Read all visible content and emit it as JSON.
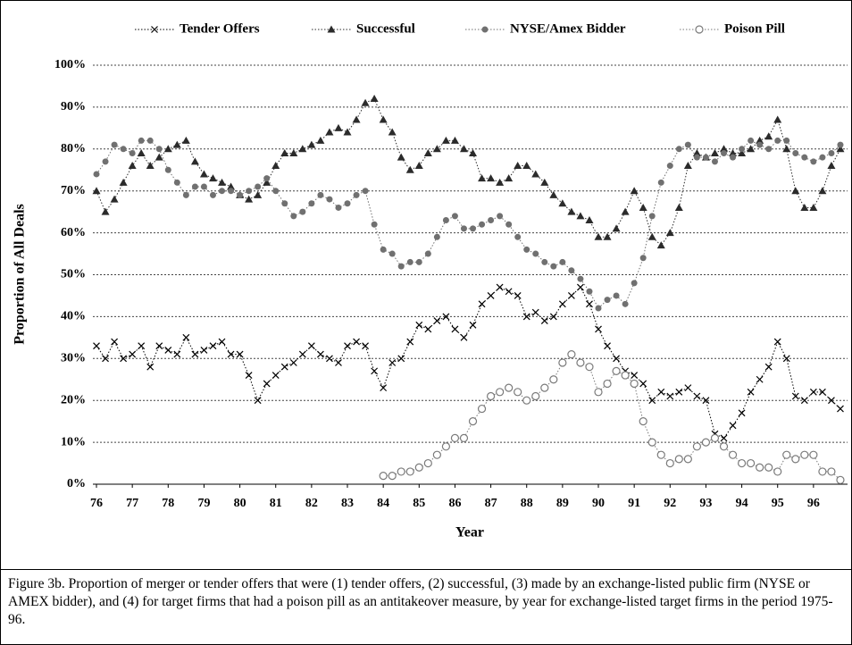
{
  "chart_data": {
    "type": "line",
    "x_label": "Year",
    "y_label": "Proportion of All Deals",
    "caption": "Figure 3b.  Proportion of merger or tender offers that were (1) tender offers, (2) successful, (3) made by an exchange-listed public firm (NYSE or AMEX bidder), and (4) for target firms that had a poison pill as an antitakeover measure, by year for exchange-listed target firms in the period 1975-96.",
    "grid": true,
    "legend": "top",
    "xlim": [
      75.9,
      96.95
    ],
    "xticks": [
      76,
      77,
      78,
      79,
      80,
      81,
      82,
      83,
      84,
      85,
      86,
      87,
      88,
      89,
      90,
      91,
      92,
      93,
      94,
      95,
      96
    ],
    "ylim": [
      0,
      100
    ],
    "yticks": [
      {
        "value": 0,
        "label": "0%"
      },
      {
        "value": 10,
        "label": "10%"
      },
      {
        "value": 20,
        "label": "20%"
      },
      {
        "value": 30,
        "label": "30%"
      },
      {
        "value": 40,
        "label": "40%"
      },
      {
        "value": 50,
        "label": "50%"
      },
      {
        "value": 60,
        "label": "60%"
      },
      {
        "value": 70,
        "label": "70%"
      },
      {
        "value": 80,
        "label": "80%"
      },
      {
        "value": 90,
        "label": "90%"
      },
      {
        "value": 100,
        "label": "100%"
      }
    ],
    "x": [
      76,
      76.25,
      76.5,
      76.75,
      77,
      77.25,
      77.5,
      77.75,
      78,
      78.25,
      78.5,
      78.75,
      79,
      79.25,
      79.5,
      79.75,
      80,
      80.25,
      80.5,
      80.75,
      81,
      81.25,
      81.5,
      81.75,
      82,
      82.25,
      82.5,
      82.75,
      83,
      83.25,
      83.5,
      83.75,
      84,
      84.25,
      84.5,
      84.75,
      85,
      85.25,
      85.5,
      85.75,
      86,
      86.25,
      86.5,
      86.75,
      87,
      87.25,
      87.5,
      87.75,
      88,
      88.25,
      88.5,
      88.75,
      89,
      89.25,
      89.5,
      89.75,
      90,
      90.25,
      90.5,
      90.75,
      91,
      91.25,
      91.5,
      91.75,
      92,
      92.25,
      92.5,
      92.75,
      93,
      93.25,
      93.5,
      93.75,
      94,
      94.25,
      94.5,
      94.75,
      95,
      95.25,
      95.5,
      95.75,
      96,
      96.25,
      96.5,
      96.75
    ],
    "series": [
      {
        "name": "Tender Offers",
        "color": "#000000",
        "marker": "x",
        "values": [
          33,
          30,
          34,
          30,
          31,
          33,
          28,
          33,
          32,
          31,
          35,
          31,
          32,
          33,
          34,
          31,
          31,
          26,
          20,
          24,
          26,
          28,
          29,
          31,
          33,
          31,
          30,
          29,
          33,
          34,
          33,
          27,
          23,
          29,
          30,
          34,
          38,
          37,
          39,
          40,
          37,
          35,
          38,
          43,
          45,
          47,
          46,
          45,
          40,
          41,
          39,
          40,
          43,
          45,
          47,
          43,
          37,
          33,
          30,
          27,
          26,
          24,
          20,
          22,
          21,
          22,
          23,
          21,
          20,
          12,
          11,
          14,
          17,
          22,
          25,
          28,
          34,
          30,
          21,
          20,
          22,
          22,
          20,
          18
        ]
      },
      {
        "name": "Successful",
        "color": "#2b2b2b",
        "marker": "triangle",
        "values": [
          70,
          65,
          68,
          72,
          76,
          79,
          76,
          78,
          80,
          81,
          82,
          77,
          74,
          73,
          72,
          71,
          69,
          68,
          69,
          72,
          76,
          79,
          79,
          80,
          81,
          82,
          84,
          85,
          84,
          87,
          91,
          92,
          87,
          84,
          78,
          75,
          76,
          79,
          80,
          82,
          82,
          80,
          79,
          73,
          73,
          72,
          73,
          76,
          76,
          74,
          72,
          69,
          67,
          65,
          64,
          63,
          59,
          59,
          61,
          65,
          70,
          66,
          59,
          57,
          60,
          66,
          76,
          79,
          78,
          79,
          80,
          79,
          79,
          80,
          82,
          83,
          87,
          80,
          70,
          66,
          66,
          70,
          76,
          80
        ]
      },
      {
        "name": "NYSE/Amex Bidder",
        "color": "#707070",
        "marker": "dot",
        "values": [
          74,
          77,
          81,
          80,
          79,
          82,
          82,
          80,
          75,
          72,
          69,
          71,
          71,
          69,
          70,
          70,
          69,
          70,
          71,
          73,
          70,
          67,
          64,
          65,
          67,
          69,
          68,
          66,
          67,
          69,
          70,
          62,
          56,
          55,
          52,
          53,
          53,
          55,
          59,
          63,
          64,
          61,
          61,
          62,
          63,
          64,
          62,
          59,
          56,
          55,
          53,
          52,
          53,
          51,
          49,
          46,
          42,
          44,
          45,
          43,
          48,
          54,
          64,
          72,
          76,
          80,
          81,
          78,
          78,
          77,
          79,
          78,
          80,
          82,
          81,
          80,
          82,
          82,
          79,
          78,
          77,
          78,
          79,
          81
        ]
      },
      {
        "name": "Poison Pill",
        "color": "#7a7a7a",
        "marker": "circle",
        "values": [
          null,
          null,
          null,
          null,
          null,
          null,
          null,
          null,
          null,
          null,
          null,
          null,
          null,
          null,
          null,
          null,
          null,
          null,
          null,
          null,
          null,
          null,
          null,
          null,
          null,
          null,
          null,
          null,
          null,
          null,
          null,
          null,
          2,
          2,
          3,
          3,
          4,
          5,
          7,
          9,
          11,
          11,
          15,
          18,
          21,
          22,
          23,
          22,
          20,
          21,
          23,
          25,
          29,
          31,
          29,
          28,
          22,
          24,
          27,
          26,
          24,
          15,
          10,
          7,
          5,
          6,
          6,
          9,
          10,
          11,
          9,
          7,
          5,
          5,
          4,
          4,
          3,
          7,
          6,
          7,
          7,
          3,
          3,
          1
        ]
      }
    ]
  }
}
